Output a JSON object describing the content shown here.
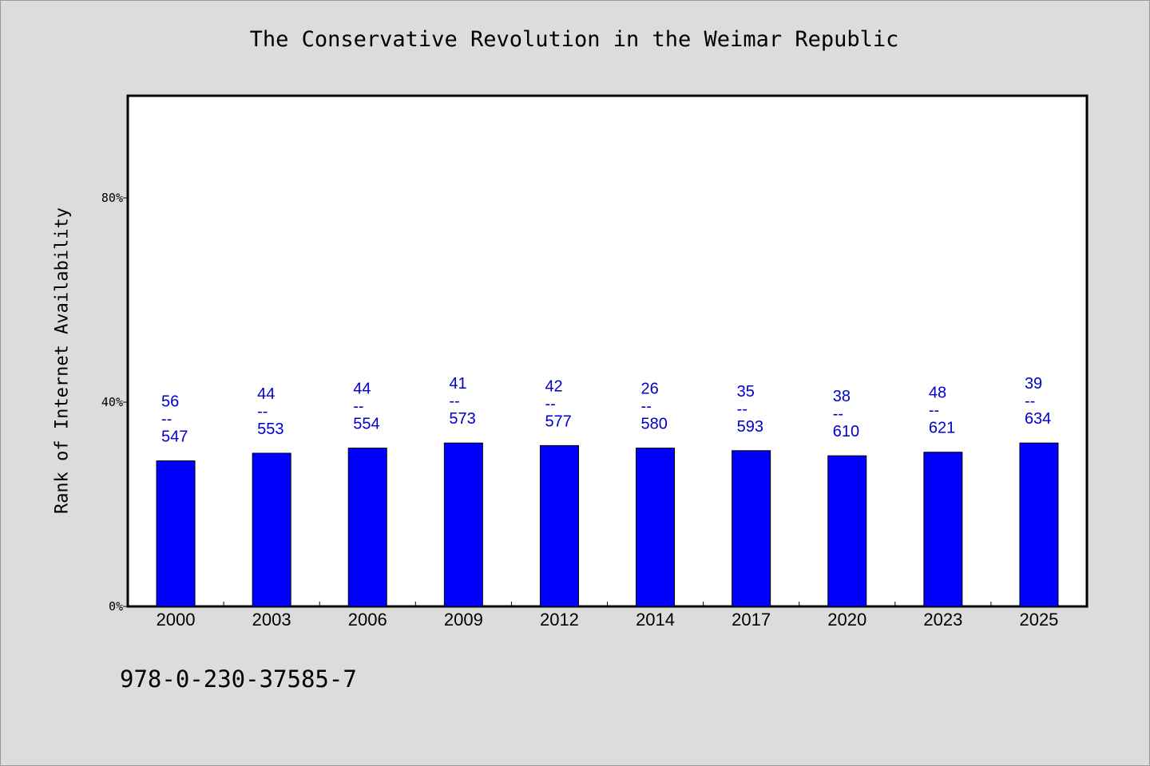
{
  "chart_data": {
    "type": "bar",
    "title": "The Conservative Revolution in the Weimar Republic",
    "xlabel": "",
    "ylabel": "Rank of Internet Availability",
    "categories": [
      "2000",
      "2003",
      "2006",
      "2009",
      "2012",
      "2014",
      "2017",
      "2020",
      "2023",
      "2025"
    ],
    "values": [
      28.5,
      30.0,
      31.0,
      32.0,
      31.5,
      31.0,
      30.5,
      29.5,
      30.2,
      32.0
    ],
    "value_unit": "%",
    "data_labels": [
      {
        "top": "56",
        "sep": "--",
        "bottom": "547"
      },
      {
        "top": "44",
        "sep": "--",
        "bottom": "553"
      },
      {
        "top": "44",
        "sep": "--",
        "bottom": "554"
      },
      {
        "top": "41",
        "sep": "--",
        "bottom": "573"
      },
      {
        "top": "42",
        "sep": "--",
        "bottom": "577"
      },
      {
        "top": "26",
        "sep": "--",
        "bottom": "580"
      },
      {
        "top": "35",
        "sep": "--",
        "bottom": "593"
      },
      {
        "top": "38",
        "sep": "--",
        "bottom": "610"
      },
      {
        "top": "48",
        "sep": "--",
        "bottom": "621"
      },
      {
        "top": "39",
        "sep": "--",
        "bottom": "634"
      }
    ],
    "ylim": [
      0,
      100
    ],
    "yticks": [
      0,
      40,
      80
    ],
    "ytick_labels": [
      "0%",
      "40%",
      "80%"
    ],
    "grid": false,
    "legend": "none",
    "colors": {
      "bar": "#0000ff",
      "label": "#0000cc",
      "plot_bg": "#ffffff",
      "page_bg": "#dcdcdc"
    }
  },
  "footer": {
    "code": "978-0-230-37585-7"
  }
}
